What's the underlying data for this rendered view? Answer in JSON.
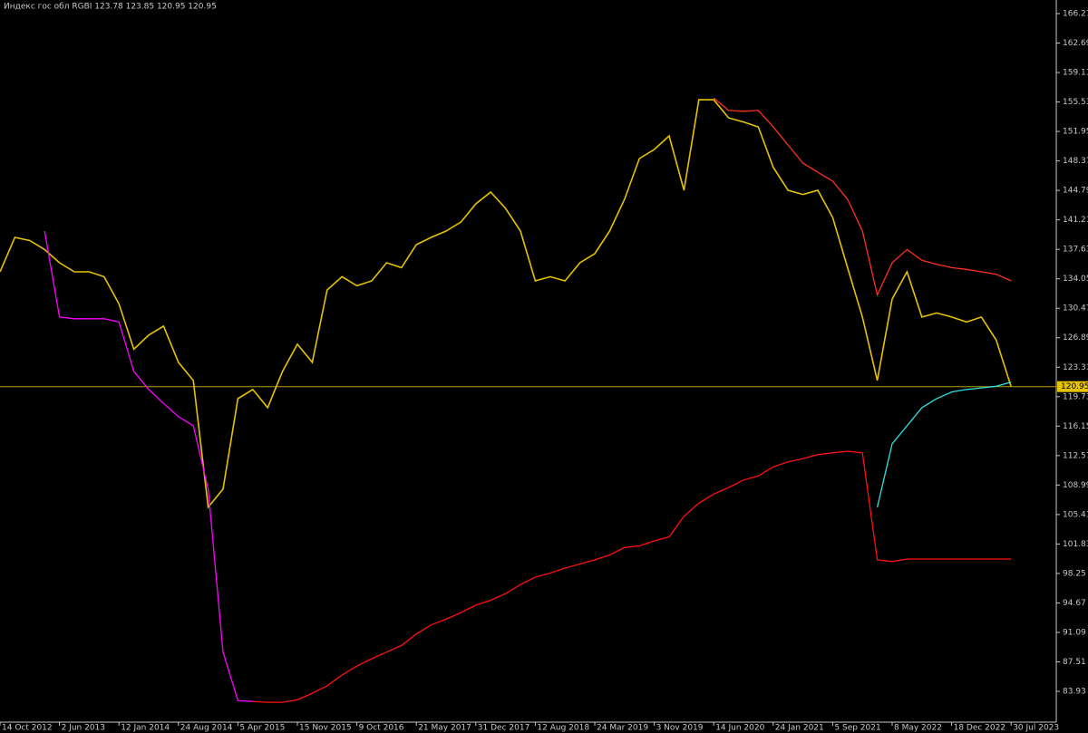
{
  "chart_data": {
    "type": "line",
    "title": "Индекс гос обл RGBI  123.78 123.85 120.95 120.95",
    "categories": [
      "14 Oct 2012",
      null,
      null,
      null,
      "2 Jun 2013",
      null,
      null,
      null,
      "12 Jan 2014",
      null,
      null,
      null,
      "24 Aug 2014",
      null,
      null,
      null,
      "5 Apr 2015",
      null,
      null,
      null,
      "15 Nov 2015",
      null,
      null,
      null,
      "9 Oct 2016",
      null,
      null,
      null,
      "21 May 2017",
      null,
      null,
      null,
      "31 Dec 2017",
      null,
      null,
      null,
      "12 Aug 2018",
      null,
      null,
      null,
      "24 Mar 2019",
      null,
      null,
      null,
      "3 Nov 2019",
      null,
      null,
      null,
      "14 Jun 2020",
      null,
      null,
      null,
      "24 Jan 2021",
      null,
      null,
      null,
      "5 Sep 2021",
      null,
      null,
      null,
      "8 May 2022",
      null,
      null,
      null,
      "18 Dec 2022",
      null,
      null,
      null,
      "30 Jul 2023"
    ],
    "series": [
      {
        "color": "#e6c200",
        "values": [
          134.9,
          139.08,
          138.7,
          137.6,
          136.0,
          134.9,
          134.9,
          134.3,
          131.0,
          125.5,
          127.2,
          128.3,
          123.9,
          121.7,
          106.3,
          108.5,
          119.5,
          120.6,
          118.4,
          122.8,
          126.1,
          123.9,
          132.7,
          134.3,
          133.2,
          133.8,
          136.0,
          135.4,
          138.2,
          139.08,
          139.85,
          140.95,
          143.15,
          144.58,
          142.6,
          139.85,
          133.8,
          134.3,
          133.8,
          136.0,
          137.1,
          139.85,
          143.7,
          148.66,
          149.76,
          151.41,
          144.8,
          155.8,
          155.8,
          153.6,
          153.1,
          152.5,
          147.6,
          144.8,
          144.3,
          144.8,
          141.5,
          135.4,
          129.4,
          121.7,
          131.6,
          134.9,
          129.4,
          129.9,
          129.4,
          128.8,
          129.4,
          126.6,
          120.95
        ]
      },
      {
        "color": "#ff3020",
        "values": [
          null,
          null,
          null,
          null,
          null,
          null,
          null,
          null,
          null,
          null,
          null,
          null,
          null,
          null,
          null,
          null,
          null,
          null,
          null,
          null,
          null,
          null,
          null,
          null,
          null,
          null,
          null,
          null,
          null,
          null,
          null,
          null,
          null,
          null,
          null,
          null,
          null,
          null,
          null,
          null,
          null,
          null,
          null,
          null,
          null,
          null,
          null,
          null,
          156.0,
          154.5,
          154.4,
          154.5,
          152.5,
          150.3,
          148.1,
          147.0,
          145.9,
          143.7,
          139.85,
          132.1,
          136.0,
          137.6,
          136.3,
          135.8,
          135.4,
          135.2,
          134.9,
          134.6,
          133.8
        ]
      },
      {
        "color": "#ff00ff",
        "values": [
          null,
          null,
          null,
          139.85,
          129.4,
          129.2,
          129.2,
          129.2,
          128.8,
          122.8,
          120.6,
          118.9,
          117.3,
          116.2,
          108.5,
          88.7,
          82.8,
          82.7,
          null,
          null,
          null,
          null,
          null,
          null,
          null,
          null,
          null,
          null,
          null,
          null,
          null,
          null,
          null,
          null,
          null,
          null,
          null,
          null,
          null,
          null,
          null,
          null,
          null,
          null,
          null,
          null,
          null,
          null,
          null,
          null,
          null,
          null,
          null,
          null,
          null,
          null,
          null,
          null,
          null,
          null,
          null,
          null,
          null,
          null,
          null,
          null,
          null,
          null,
          null
        ]
      },
      {
        "color": "#ff1010",
        "values": [
          null,
          null,
          null,
          null,
          null,
          null,
          null,
          null,
          null,
          null,
          null,
          null,
          null,
          null,
          null,
          null,
          null,
          82.7,
          82.6,
          82.6,
          82.9,
          83.7,
          84.6,
          85.9,
          87.0,
          87.9,
          88.7,
          89.5,
          90.9,
          92.0,
          92.7,
          93.5,
          94.4,
          95.0,
          95.8,
          96.9,
          97.8,
          98.3,
          98.9,
          99.4,
          99.9,
          100.5,
          101.4,
          101.6,
          102.2,
          102.7,
          105.2,
          106.8,
          107.9,
          108.7,
          109.6,
          110.1,
          111.2,
          111.8,
          112.2,
          112.7,
          112.9,
          113.1,
          112.9,
          99.9,
          99.7,
          100.0,
          100.0,
          100.0,
          100.0,
          100.0,
          100.0,
          100.0,
          100.0
        ]
      },
      {
        "color": "#30e0e0",
        "values": [
          null,
          null,
          null,
          null,
          null,
          null,
          null,
          null,
          null,
          null,
          null,
          null,
          null,
          null,
          null,
          null,
          null,
          null,
          null,
          null,
          null,
          null,
          null,
          null,
          null,
          null,
          null,
          null,
          null,
          null,
          null,
          null,
          null,
          null,
          null,
          null,
          null,
          null,
          null,
          null,
          null,
          null,
          null,
          null,
          null,
          null,
          null,
          null,
          null,
          null,
          null,
          null,
          null,
          null,
          null,
          null,
          null,
          null,
          null,
          106.3,
          114.0,
          116.2,
          118.4,
          119.5,
          120.3,
          120.6,
          120.8,
          121.0,
          121.5
        ]
      }
    ],
    "current_price": 120.95,
    "ylim": [
      79.86,
      167.92
    ],
    "yticks": [
      166.27,
      162.69,
      159.11,
      155.53,
      151.95,
      148.37,
      144.79,
      141.21,
      137.63,
      134.05,
      130.47,
      126.89,
      123.31,
      119.73,
      116.15,
      112.57,
      108.99,
      105.41,
      101.83,
      98.25,
      94.67,
      91.09,
      87.51,
      83.93
    ],
    "grid": false
  }
}
